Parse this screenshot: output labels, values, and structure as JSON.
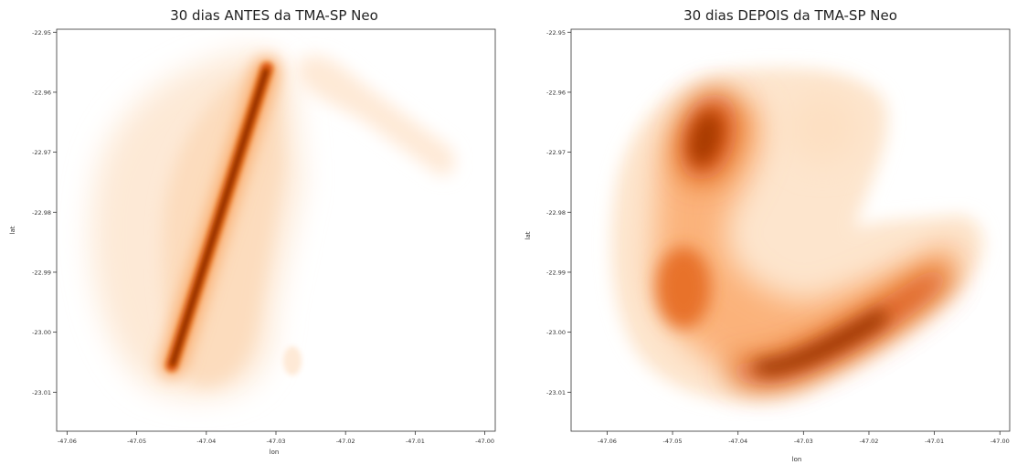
{
  "chart_data": [
    {
      "type": "heatmap",
      "subtype": "kde-density",
      "title": "30 dias ANTES da TMA-SP Neo",
      "xlabel": "lon",
      "ylabel": "lat",
      "xlim": [
        -47.0615,
        -46.9985
      ],
      "ylim": [
        -23.0165,
        -22.9495
      ],
      "xticks": [
        -47.06,
        -47.05,
        -47.04,
        -47.03,
        -47.02,
        -47.01,
        -47.0
      ],
      "xtick_labels": [
        "-47.06",
        "-47.05",
        "-47.04",
        "-47.03",
        "-47.02",
        "-47.01",
        "-47.00"
      ],
      "yticks": [
        -22.95,
        -22.96,
        -22.97,
        -22.98,
        -22.99,
        -23.0,
        -23.01
      ],
      "ytick_labels": [
        "-22.95",
        "-22.96",
        "-22.97",
        "-22.98",
        "-22.99",
        "-23.00",
        "-23.01"
      ],
      "colormap": "Oranges",
      "grid": false,
      "hotspots": [
        {
          "region": "dense diagonal track",
          "from": {
            "lon": -47.0455,
            "lat": -23.0055
          },
          "to": {
            "lon": -47.03,
            "lat": -22.9575
          },
          "level": "very high"
        },
        {
          "region": "broad halo west of track",
          "center": {
            "lon": -47.045,
            "lat": -22.985
          },
          "level": "very low"
        },
        {
          "region": "northeast arm",
          "from": {
            "lon": -47.027,
            "lat": -22.957
          },
          "to": {
            "lon": -47.004,
            "lat": -22.972
          },
          "level": "very low"
        },
        {
          "region": "small isolated blob",
          "center": {
            "lon": -47.0275,
            "lat": -23.004
          },
          "level": "very low"
        }
      ]
    },
    {
      "type": "heatmap",
      "subtype": "kde-density",
      "title": "30 dias DEPOIS da TMA-SP Neo",
      "xlabel": "lon",
      "ylabel": "lat",
      "xlim": [
        -47.0655,
        -46.9985
      ],
      "ylim": [
        -23.0165,
        -22.9495
      ],
      "xticks": [
        -47.06,
        -47.05,
        -47.04,
        -47.03,
        -47.02,
        -47.01,
        -47.0
      ],
      "xtick_labels": [
        "-47.06",
        "-47.05",
        "-47.04",
        "-47.03",
        "-47.02",
        "-47.01",
        "-47.00"
      ],
      "yticks": [
        -22.95,
        -22.96,
        -22.97,
        -22.98,
        -22.99,
        -23.0,
        -23.01
      ],
      "ytick_labels": [
        "-22.95",
        "-22.96",
        "-22.97",
        "-22.98",
        "-22.99",
        "-23.00",
        "-23.01"
      ],
      "colormap": "Oranges",
      "grid": false,
      "hotspots": [
        {
          "region": "northwest core",
          "center": {
            "lon": -47.0425,
            "lat": -22.9685
          },
          "level": "high"
        },
        {
          "region": "southern arc",
          "from": {
            "lon": -47.036,
            "lat": -23.004
          },
          "to": {
            "lon": -47.012,
            "lat": -22.99
          },
          "level": "high"
        },
        {
          "region": "eastern arm tip",
          "center": {
            "lon": -47.004,
            "lat": -22.986
          },
          "level": "medium"
        },
        {
          "region": "outer ring",
          "center": {
            "lon": -47.035,
            "lat": -22.985
          },
          "level": "low"
        }
      ]
    }
  ]
}
